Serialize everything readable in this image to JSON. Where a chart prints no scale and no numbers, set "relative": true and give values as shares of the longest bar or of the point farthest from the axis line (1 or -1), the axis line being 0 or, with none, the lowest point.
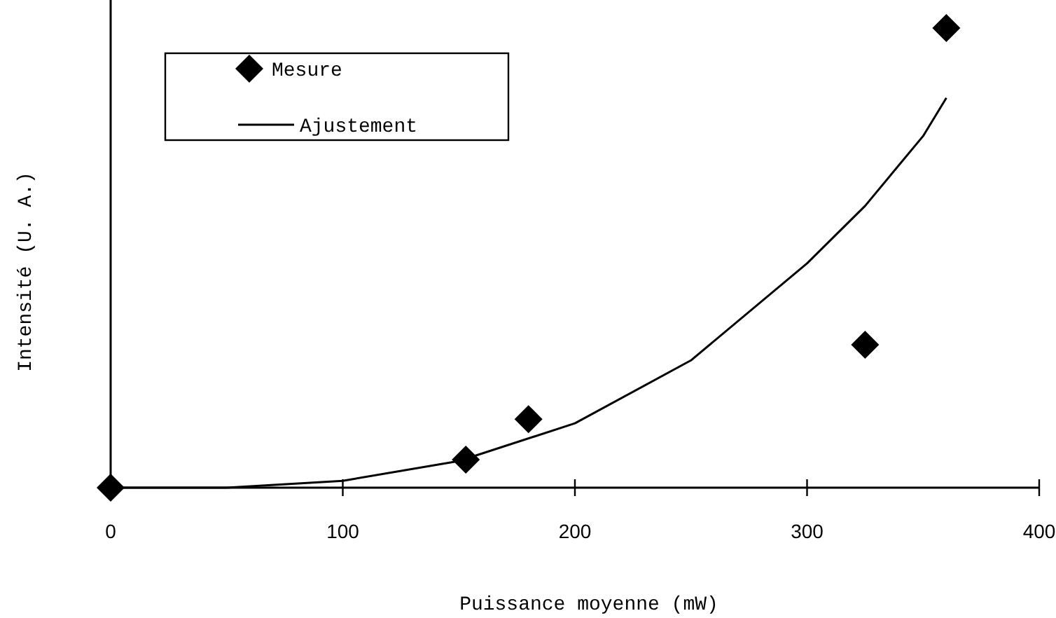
{
  "chart_data": {
    "type": "scatter",
    "xlabel": "Puissance moyenne (mW)",
    "ylabel": "Intensité (U. A.)",
    "relative": true,
    "xlim": [
      0,
      400
    ],
    "xticks": [
      0,
      100,
      200,
      300,
      400
    ],
    "tick_labels": "x",
    "grid": false,
    "legend": "top left",
    "series": [
      {
        "name": "Mesure",
        "marker": "diamond",
        "color": "#000000",
        "x": [
          0,
          153,
          180,
          325,
          360
        ],
        "values": [
          0,
          0.061,
          0.149,
          0.311,
          1
        ]
      },
      {
        "name": "Ajustement",
        "type": "line",
        "marker": "none",
        "line_style": "solid",
        "color": "#000000",
        "x": [
          0,
          50,
          100,
          150,
          200,
          250,
          300,
          325,
          350,
          360
        ],
        "values": [
          0,
          0,
          0.015,
          0.058,
          0.14,
          0.277,
          0.488,
          0.613,
          0.765,
          0.848
        ]
      }
    ]
  }
}
